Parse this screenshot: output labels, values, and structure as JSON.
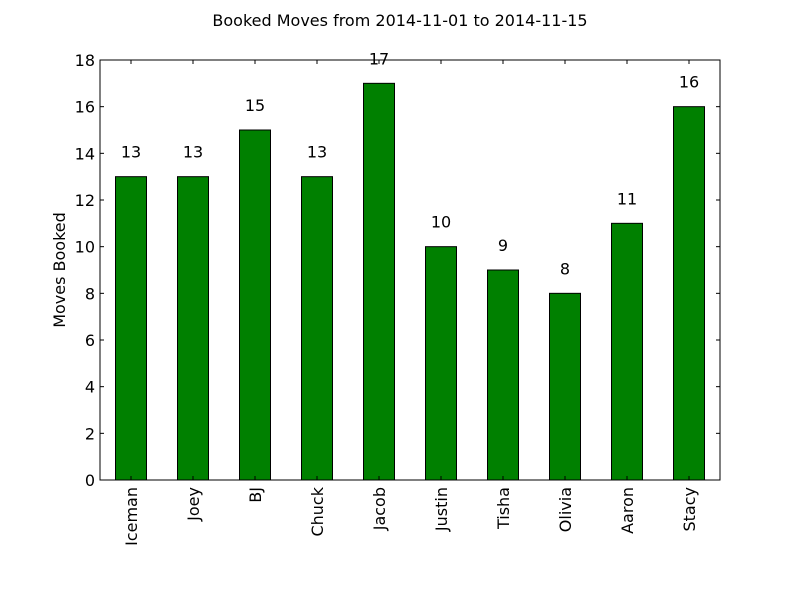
{
  "chart_data": {
    "type": "bar",
    "title": "Booked Moves from 2014-11-01 to 2014-11-15",
    "xlabel": "",
    "ylabel": "Moves Booked",
    "categories": [
      "Iceman",
      "Joey",
      "BJ",
      "Chuck",
      "Jacob",
      "Justin",
      "Tisha",
      "Olivia",
      "Aaron",
      "Stacy"
    ],
    "values": [
      13,
      13,
      15,
      13,
      17,
      10,
      9,
      8,
      11,
      16
    ],
    "data_labels": [
      "13",
      "13",
      "15",
      "13",
      "17",
      "10",
      "9",
      "8",
      "11",
      "16"
    ],
    "ylim": [
      0,
      18
    ],
    "yticks": [
      0,
      2,
      4,
      6,
      8,
      10,
      12,
      14,
      16,
      18
    ],
    "grid": false,
    "legend": "none",
    "bar_color": "#008000",
    "edge_color": "#000000"
  }
}
